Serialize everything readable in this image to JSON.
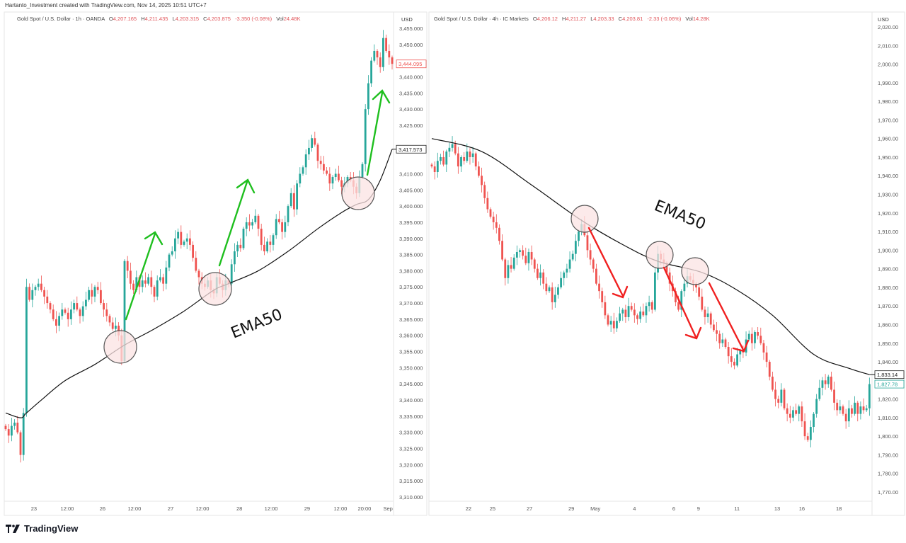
{
  "credit": "Hartanto_Investment created with TradingView.com, Nov 14, 2025 10:51 UTC+7",
  "footer": {
    "logo_text": "TradingView"
  },
  "colors": {
    "up": "#26a69a",
    "down": "#ef5350",
    "ema": "#111111",
    "arrow_up": "#1fbf1f",
    "arrow_down": "#f02020",
    "circle_fill": "#fbe3e3",
    "circle_stroke": "#555555"
  },
  "chart_data": [
    {
      "type": "candlestick",
      "title": "Gold Spot / U.S. Dollar · 1h · OANDA",
      "ohlc": {
        "o": "4,207.165",
        "h": "4,211.435",
        "l": "4,203.315",
        "c": "4,203.875",
        "change": "-3.350 (-0.08%)",
        "vol": "24.48K"
      },
      "currency": "USD",
      "ylim": [
        3310,
        3455
      ],
      "ytick_step": 5,
      "ytick_decimals": 3,
      "last_price": "3,444.095",
      "ema_label": "3,417.573",
      "annotation": "EMA50",
      "xticks": [
        {
          "at": 9.5,
          "label": "23"
        },
        {
          "at": 20.7,
          "label": "12:00"
        },
        {
          "at": 32.6,
          "label": "26"
        },
        {
          "at": 43.3,
          "label": "12:00"
        },
        {
          "at": 55.5,
          "label": "27"
        },
        {
          "at": 66.2,
          "label": "12:00"
        },
        {
          "at": 78.6,
          "label": "28"
        },
        {
          "at": 89.3,
          "label": "12:00"
        },
        {
          "at": 101.4,
          "label": "29"
        },
        {
          "at": 112.6,
          "label": "12:00"
        },
        {
          "at": 120.7,
          "label": "20:00"
        },
        {
          "at": 128.6,
          "label": "Sep"
        }
      ],
      "close": [
        3331,
        3329,
        3332,
        3333,
        3330,
        3323,
        3336,
        3375,
        3371,
        3374,
        3375,
        3376,
        3374,
        3372,
        3370,
        3368,
        3365,
        3363,
        3366,
        3368,
        3367,
        3365,
        3368,
        3370,
        3368,
        3366,
        3369,
        3371,
        3374,
        3372,
        3375,
        3374,
        3370,
        3368,
        3366,
        3364,
        3362,
        3363,
        3360,
        3352,
        3383,
        3380,
        3376,
        3374,
        3378,
        3375,
        3377,
        3376,
        3378,
        3375,
        3372,
        3377,
        3378,
        3376,
        3381,
        3385,
        3386,
        3390,
        3392,
        3388,
        3389,
        3390,
        3388,
        3384,
        3380,
        3378,
        3376,
        3375,
        3377,
        3374,
        3373,
        3378,
        3376,
        3374,
        3377,
        3376,
        3382,
        3386,
        3388,
        3387,
        3393,
        3395,
        3394,
        3395,
        3397,
        3393,
        3388,
        3386,
        3389,
        3388,
        3391,
        3396,
        3395,
        3392,
        3395,
        3400,
        3404,
        3399,
        3407,
        3410,
        3412,
        3416,
        3418,
        3421,
        3419,
        3414,
        3413,
        3411,
        3410,
        3407,
        3409,
        3410,
        3408,
        3406,
        3407,
        3409,
        3408,
        3406,
        3404,
        3409,
        3413,
        3430,
        3438,
        3445,
        3448,
        3446,
        3443,
        3452,
        3448,
        3446,
        3444
      ],
      "ema50": [
        [
          0,
          3336
        ],
        [
          5,
          3334.5
        ],
        [
          7,
          3336
        ],
        [
          12,
          3340
        ],
        [
          20,
          3346
        ],
        [
          30,
          3351
        ],
        [
          40,
          3357
        ],
        [
          50,
          3362
        ],
        [
          60,
          3367.5
        ],
        [
          70,
          3374
        ],
        [
          75,
          3376
        ],
        [
          85,
          3380
        ],
        [
          95,
          3386
        ],
        [
          105,
          3393
        ],
        [
          113,
          3398
        ],
        [
          118,
          3400.5
        ],
        [
          122,
          3402
        ],
        [
          126,
          3408
        ],
        [
          130,
          3417.6
        ]
      ]
    },
    {
      "type": "candlestick",
      "title": "Gold Spot / U.S. Dollar · 4h · IC Markets",
      "ohlc": {
        "o": "4,206.12",
        "h": "4,211.27",
        "l": "4,203.33",
        "c": "4,203.81",
        "change": "-2.33 (-0.06%)",
        "vol": "14.28K"
      },
      "currency": "USD",
      "ylim": [
        1770,
        2020
      ],
      "ytick_step": 10,
      "ytick_decimals": 2,
      "last_price": "1,827.78",
      "ema_label": "1,833.14",
      "annotation": "EMA50",
      "xticks": [
        {
          "at": 12.5,
          "label": "22"
        },
        {
          "at": 20.7,
          "label": "25"
        },
        {
          "at": 33.3,
          "label": "27"
        },
        {
          "at": 47.5,
          "label": "29"
        },
        {
          "at": 55.7,
          "label": "May"
        },
        {
          "at": 69,
          "label": "4"
        },
        {
          "at": 82.4,
          "label": "6"
        },
        {
          "at": 90.8,
          "label": "9"
        },
        {
          "at": 103.9,
          "label": "11"
        },
        {
          "at": 117.6,
          "label": "13"
        },
        {
          "at": 126,
          "label": "16"
        },
        {
          "at": 138.6,
          "label": "18"
        }
      ],
      "close": [
        1945,
        1942,
        1948,
        1950,
        1946,
        1953,
        1955,
        1957,
        1952,
        1945,
        1950,
        1948,
        1953,
        1950,
        1952,
        1945,
        1940,
        1935,
        1928,
        1922,
        1918,
        1915,
        1912,
        1905,
        1895,
        1885,
        1892,
        1890,
        1896,
        1899,
        1900,
        1897,
        1893,
        1899,
        1895,
        1890,
        1885,
        1888,
        1882,
        1878,
        1880,
        1872,
        1876,
        1880,
        1885,
        1888,
        1890,
        1895,
        1898,
        1905,
        1910,
        1914,
        1908,
        1900,
        1895,
        1890,
        1882,
        1878,
        1872,
        1865,
        1860,
        1862,
        1858,
        1862,
        1866,
        1868,
        1864,
        1870,
        1868,
        1865,
        1863,
        1867,
        1865,
        1870,
        1872,
        1868,
        1888,
        1898,
        1895,
        1893,
        1888,
        1882,
        1878,
        1872,
        1868,
        1878,
        1882,
        1886,
        1884,
        1882,
        1880,
        1875,
        1868,
        1864,
        1866,
        1860,
        1857,
        1855,
        1850,
        1852,
        1848,
        1843,
        1840,
        1838,
        1844,
        1846,
        1845,
        1852,
        1855,
        1850,
        1856,
        1854,
        1850,
        1845,
        1840,
        1832,
        1825,
        1820,
        1818,
        1825,
        1815,
        1812,
        1810,
        1814,
        1812,
        1816,
        1808,
        1800,
        1798,
        1805,
        1812,
        1820,
        1826,
        1830,
        1828,
        1832,
        1825,
        1818,
        1814,
        1816,
        1812,
        1808,
        1815,
        1812,
        1818,
        1812,
        1816,
        1814,
        1815,
        1828
      ],
      "ema50": [
        [
          0,
          1960
        ],
        [
          17,
          1953
        ],
        [
          34,
          1935
        ],
        [
          51,
          1916
        ],
        [
          65,
          1903
        ],
        [
          77,
          1894
        ],
        [
          92,
          1888
        ],
        [
          104,
          1878.5
        ],
        [
          116,
          1865
        ],
        [
          130,
          1844
        ],
        [
          142,
          1836.5
        ],
        [
          149,
          1833.1
        ]
      ]
    }
  ]
}
